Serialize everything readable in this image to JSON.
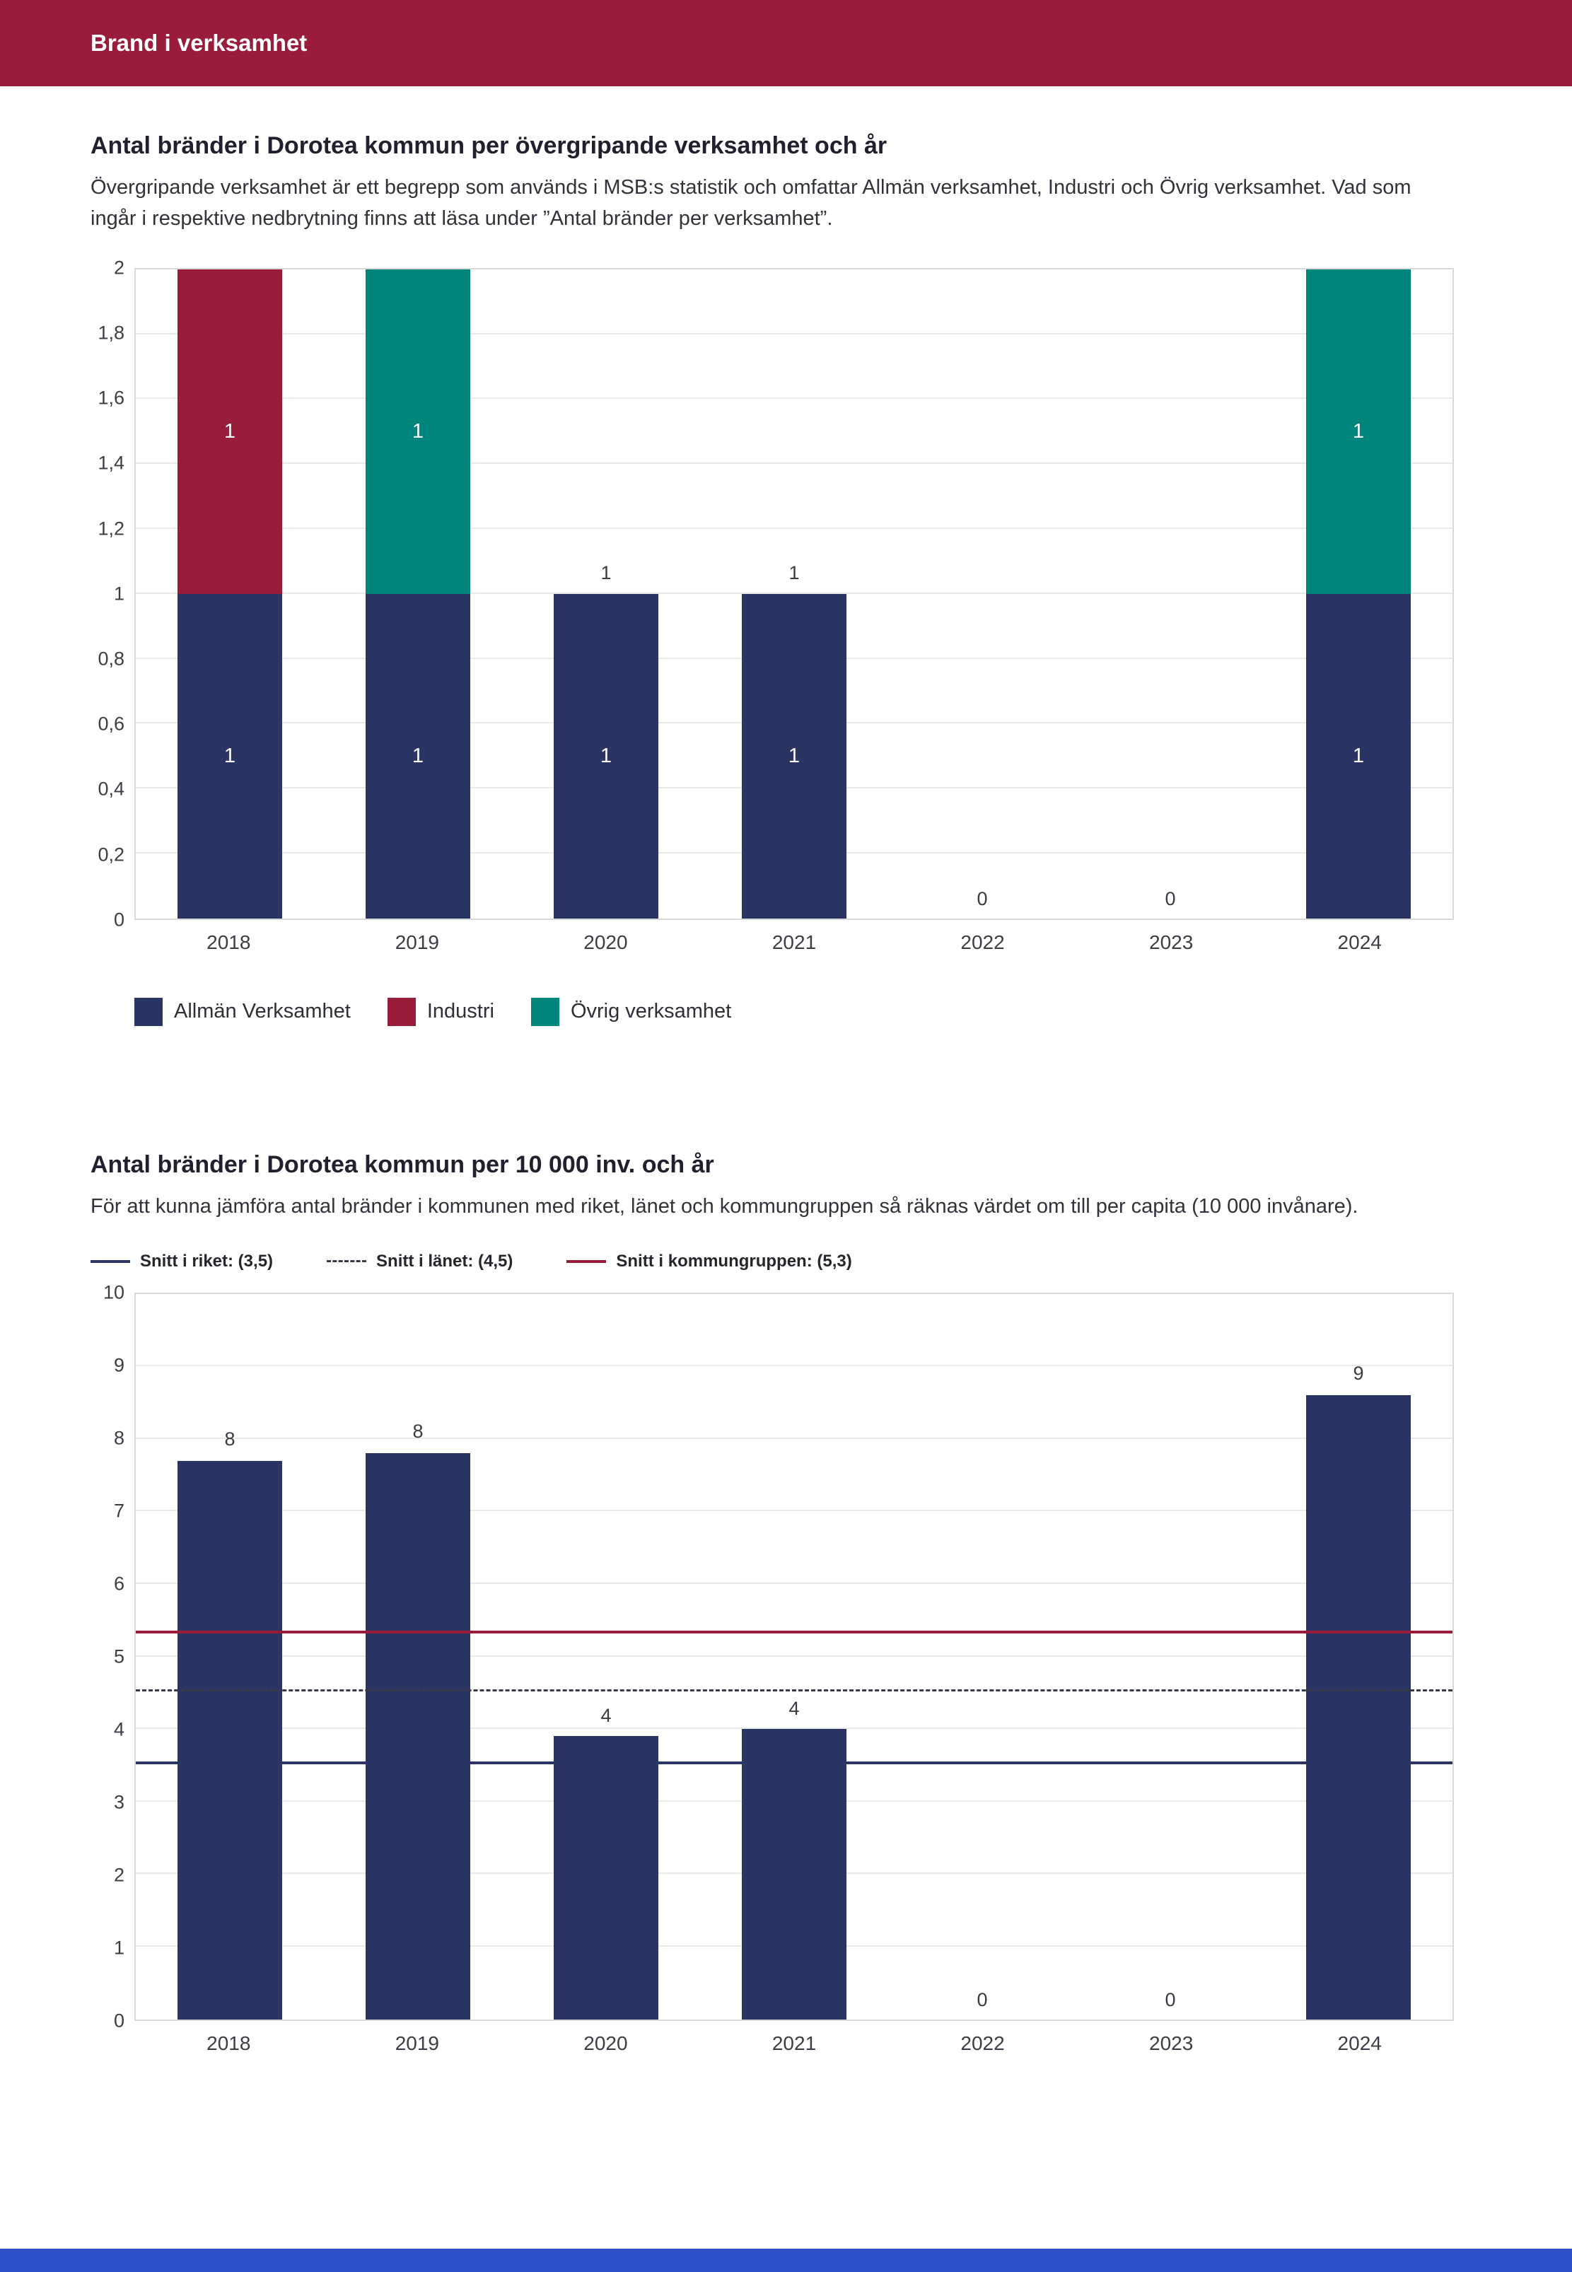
{
  "header": {
    "title": "Brand i verksamhet"
  },
  "sections": [
    {
      "title": "Antal bränder i Dorotea kommun per övergripande verksamhet och år",
      "description": "Övergripande verksamhet är ett begrepp som används i MSB:s statistik och omfattar Allmän verksamhet, Industri och Övrig verksamhet. Vad som ingår i respektive nedbrytning finns att läsa under ”Antal bränder per verksamhet”."
    },
    {
      "title": "Antal bränder i Dorotea kommun per 10 000 inv. och år",
      "description": "För att kunna jämföra antal bränder i kommunen med riket, länet och kommungruppen så räknas värdet om till per capita (10 000 invånare)."
    }
  ],
  "colors": {
    "header_bar": "#9a1c3b",
    "navy": "#2a3563",
    "maroon": "#9a1c3b",
    "teal": "#00857c",
    "bottom_bar": "#2d50c8",
    "gridline": "#e9e9e9"
  },
  "chart_data": [
    {
      "type": "bar",
      "stacked": true,
      "title": "Antal bränder i Dorotea kommun per övergripande verksamhet och år",
      "categories": [
        "2018",
        "2019",
        "2020",
        "2021",
        "2022",
        "2023",
        "2024"
      ],
      "series": [
        {
          "name": "Allmän Verksamhet",
          "color": "#2a3563",
          "values": [
            1,
            1,
            1,
            1,
            0,
            0,
            1
          ]
        },
        {
          "name": "Industri",
          "color": "#9a1c3b",
          "values": [
            1,
            0,
            0,
            0,
            0,
            0,
            0
          ]
        },
        {
          "name": "Övrig verksamhet",
          "color": "#00857c",
          "values": [
            0,
            1,
            0,
            0,
            0,
            0,
            1
          ]
        }
      ],
      "value_labels": [
        "",
        "",
        "1",
        "1",
        "0",
        "0",
        ""
      ],
      "show_segment_labels": true,
      "xlabel": "",
      "ylabel": "",
      "ylim": [
        0,
        2
      ],
      "yticks": [
        "0",
        "0,2",
        "0,4",
        "0,6",
        "0,8",
        "1",
        "1,2",
        "1,4",
        "1,6",
        "1,8",
        "2"
      ],
      "grid": true,
      "legend_position": "bottom"
    },
    {
      "type": "bar",
      "stacked": false,
      "title": "Antal bränder i Dorotea kommun per 10 000 inv. och år",
      "categories": [
        "2018",
        "2019",
        "2020",
        "2021",
        "2022",
        "2023",
        "2024"
      ],
      "color": "#2a3563",
      "values": [
        7.7,
        7.8,
        3.9,
        4.0,
        0,
        0,
        8.6
      ],
      "value_labels": [
        "8",
        "8",
        "4",
        "4",
        "0",
        "0",
        "9"
      ],
      "show_segment_labels": false,
      "xlabel": "",
      "ylabel": "",
      "ylim": [
        0,
        10
      ],
      "yticks": [
        "0",
        "1",
        "2",
        "3",
        "4",
        "5",
        "6",
        "7",
        "8",
        "9",
        "10"
      ],
      "grid": true,
      "reference_lines": [
        {
          "label": "Snitt i riket: (3,5)",
          "value": 3.5,
          "style": "solid",
          "color": "#2a3563"
        },
        {
          "label": "Snitt i länet: (4,5)",
          "value": 4.5,
          "style": "dashed",
          "color": "#3a3a46"
        },
        {
          "label": "Snitt i kommungruppen: (5,3)",
          "value": 5.3,
          "style": "solid",
          "color": "#9a1c3b"
        }
      ]
    }
  ]
}
